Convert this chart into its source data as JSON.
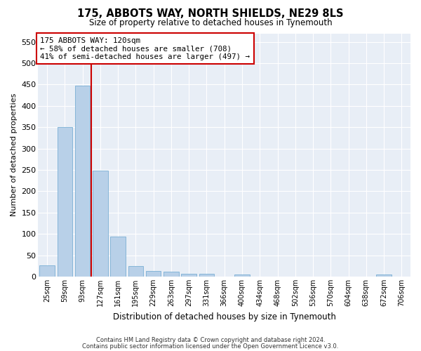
{
  "title": "175, ABBOTS WAY, NORTH SHIELDS, NE29 8LS",
  "subtitle": "Size of property relative to detached houses in Tynemouth",
  "xlabel": "Distribution of detached houses by size in Tynemouth",
  "ylabel": "Number of detached properties",
  "bar_color": "#b8d0e8",
  "bar_edge_color": "#7aafd4",
  "background_color": "#e8eef6",
  "grid_color": "#ffffff",
  "annotation_text": "175 ABBOTS WAY: 120sqm\n← 58% of detached houses are smaller (708)\n41% of semi-detached houses are larger (497) →",
  "annotation_box_color": "#ffffff",
  "annotation_box_edge": "#cc0000",
  "vline_color": "#cc0000",
  "vline_after_index": 2,
  "categories": [
    "25sqm",
    "59sqm",
    "93sqm",
    "127sqm",
    "161sqm",
    "195sqm",
    "229sqm",
    "263sqm",
    "297sqm",
    "331sqm",
    "366sqm",
    "400sqm",
    "434sqm",
    "468sqm",
    "502sqm",
    "536sqm",
    "570sqm",
    "604sqm",
    "638sqm",
    "672sqm",
    "706sqm"
  ],
  "values": [
    27,
    350,
    447,
    248,
    93,
    25,
    14,
    11,
    6,
    6,
    0,
    5,
    0,
    0,
    0,
    0,
    0,
    0,
    0,
    5,
    0
  ],
  "ylim": [
    0,
    570
  ],
  "yticks": [
    0,
    50,
    100,
    150,
    200,
    250,
    300,
    350,
    400,
    450,
    500,
    550
  ],
  "footer_line1": "Contains HM Land Registry data © Crown copyright and database right 2024.",
  "footer_line2": "Contains public sector information licensed under the Open Government Licence v3.0.",
  "figsize": [
    6.0,
    5.0
  ],
  "dpi": 100
}
